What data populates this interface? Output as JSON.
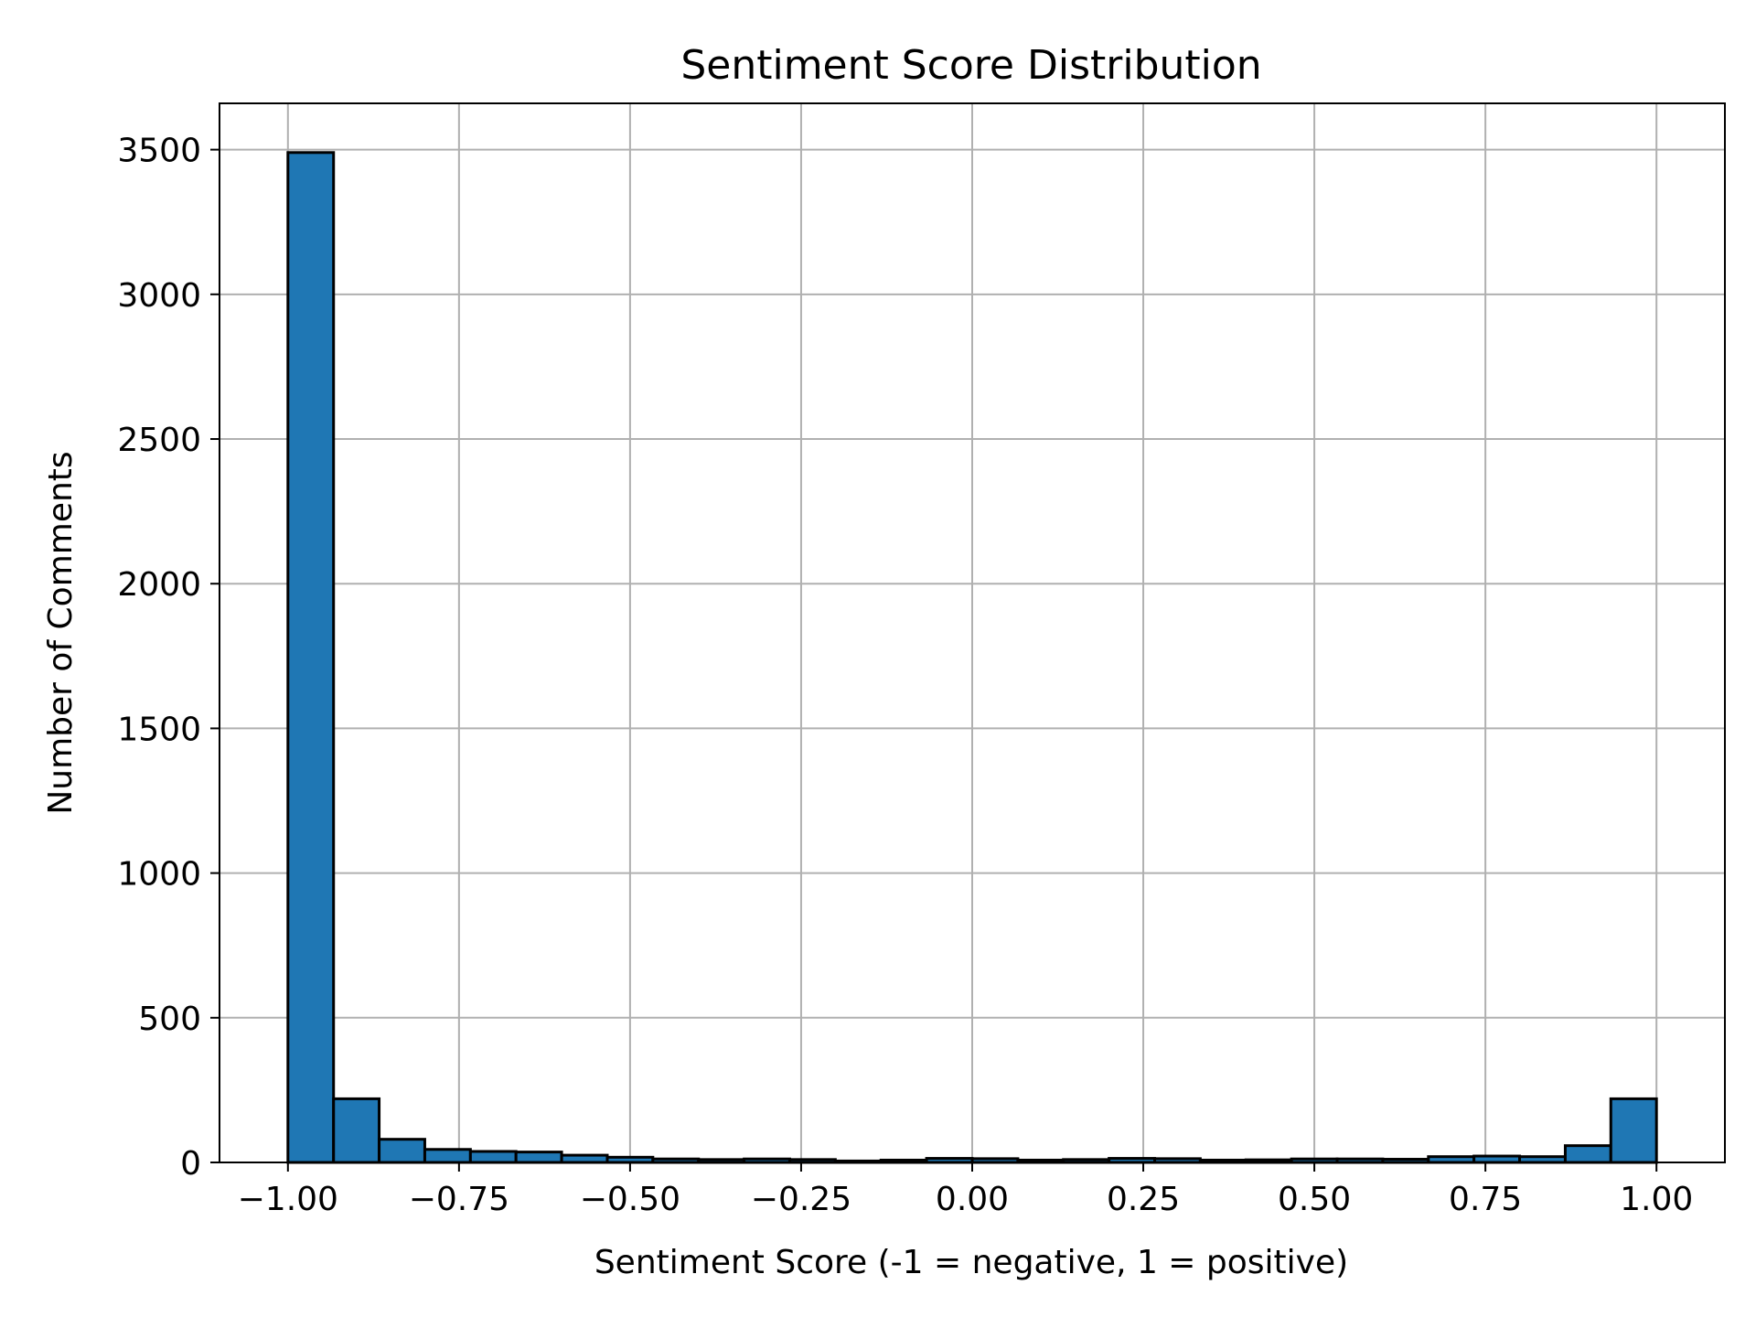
{
  "chart_data": {
    "type": "bar",
    "title": "Sentiment Score Distribution",
    "xlabel": "Sentiment Score (-1 = negative, 1 = positive)",
    "ylabel": "Number of Comments",
    "xlim": [
      -1.1,
      1.1
    ],
    "ylim": [
      0,
      3660
    ],
    "grid": true,
    "bar_color": "#1f77b4",
    "edge_color": "#000000",
    "bin_edges": [
      -1.0,
      -0.9333,
      -0.8667,
      -0.8,
      -0.7333,
      -0.6667,
      -0.6,
      -0.5333,
      -0.4667,
      -0.4,
      -0.3333,
      -0.2667,
      -0.2,
      -0.1333,
      -0.0667,
      0.0,
      0.0667,
      0.1333,
      0.2,
      0.2667,
      0.3333,
      0.4,
      0.4667,
      0.5333,
      0.6,
      0.6667,
      0.7333,
      0.8,
      0.8667,
      0.9333,
      1.0
    ],
    "values": [
      3490,
      220,
      80,
      45,
      38,
      36,
      25,
      18,
      12,
      10,
      12,
      10,
      5,
      8,
      14,
      13,
      8,
      10,
      14,
      13,
      8,
      9,
      12,
      12,
      11,
      20,
      22,
      20,
      58,
      220
    ],
    "xticks": [
      -1.0,
      -0.75,
      -0.5,
      -0.25,
      0.0,
      0.25,
      0.5,
      0.75,
      1.0
    ],
    "xtick_labels": [
      "−1.00",
      "−0.75",
      "−0.50",
      "−0.25",
      "0.00",
      "0.25",
      "0.50",
      "0.75",
      "1.00"
    ],
    "yticks": [
      0,
      500,
      1000,
      1500,
      2000,
      2500,
      3000,
      3500
    ],
    "ytick_labels": [
      "0",
      "500",
      "1000",
      "1500",
      "2000",
      "2500",
      "3000",
      "3500"
    ]
  }
}
